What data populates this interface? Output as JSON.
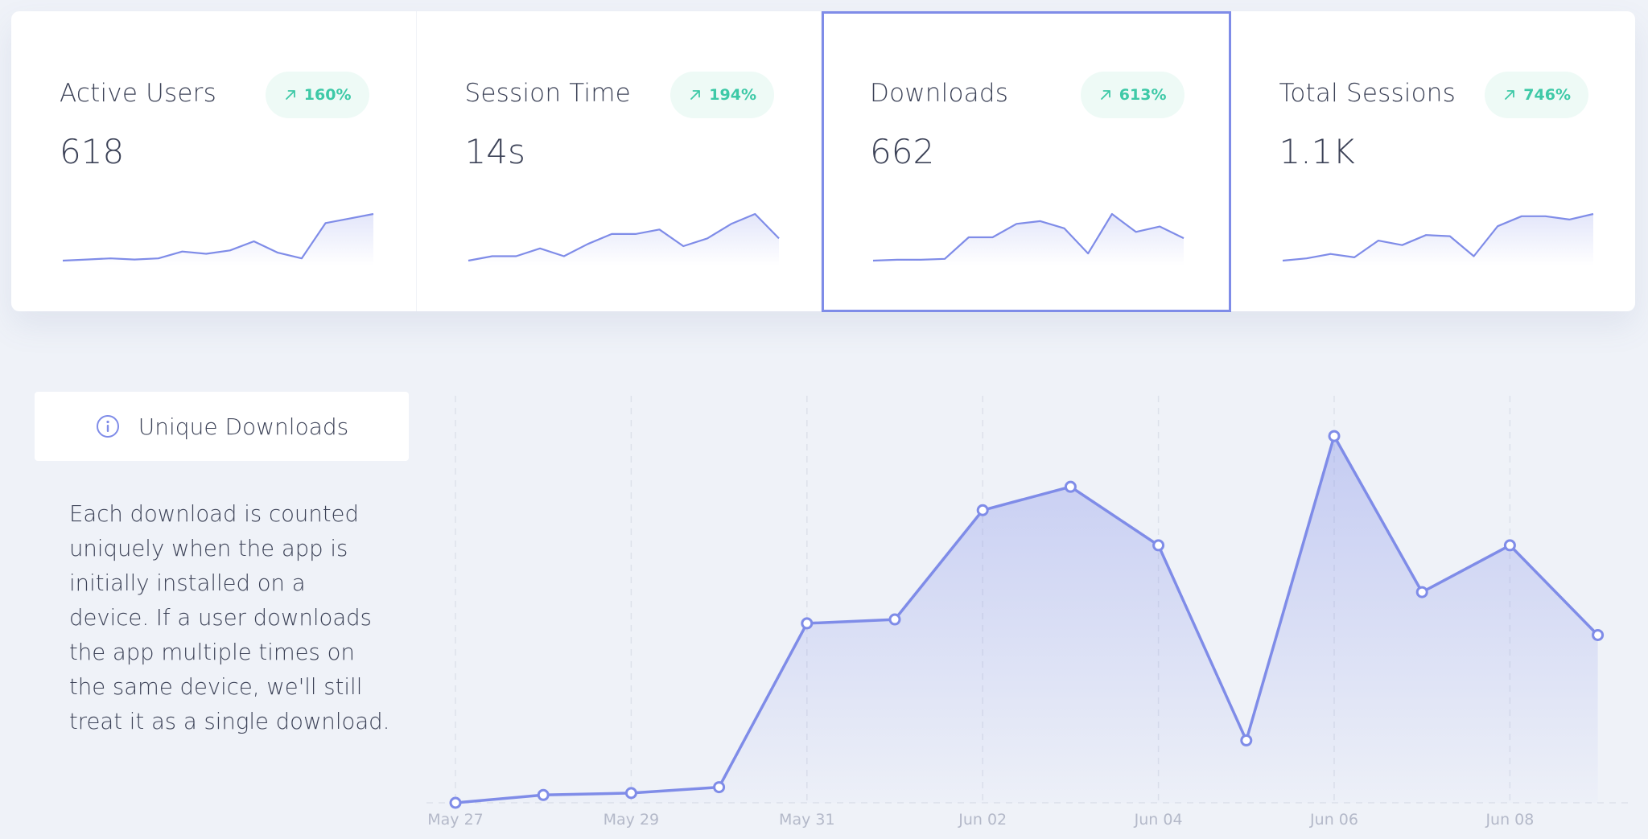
{
  "stat_cards": [
    {
      "title": "Active Users",
      "value": "618",
      "change": "160%",
      "trend": [
        1,
        2,
        3,
        2,
        3,
        9,
        7,
        10,
        18,
        8,
        3,
        34,
        38,
        42
      ]
    },
    {
      "title": "Session Time",
      "value": "14s",
      "change": "194%",
      "trend": [
        0,
        4,
        4,
        11,
        4,
        15,
        24,
        24,
        28,
        13,
        20,
        33,
        42,
        20
      ]
    },
    {
      "title": "Downloads",
      "value": "662",
      "change": "613%",
      "trend": [
        0,
        1,
        1,
        2,
        26,
        26,
        41,
        44,
        36,
        8,
        52,
        32,
        38,
        25
      ]
    },
    {
      "title": "Total Sessions",
      "value": "1.1K",
      "change": "746%",
      "trend": [
        1,
        3,
        7,
        4,
        19,
        15,
        24,
        23,
        5,
        32,
        41,
        41,
        38,
        43
      ]
    }
  ],
  "selected_card": 2,
  "info": {
    "title": "Unique Downloads",
    "description": "Each download is counted uniquely when the app is initially installed on a device. If a user downloads the app multiple times on the same device, we'll still treat it as a single download."
  },
  "colors": {
    "accent": "#7f8ce8",
    "badge_text": "#3ec9a7",
    "badge_bg": "#eefaf6",
    "text": "#3c4257",
    "axis_text": "#b4b9c9",
    "grid": "#dde1ea"
  },
  "icons": {
    "badge": "arrow-up-right-icon",
    "info": "info-circle-icon"
  },
  "chart_data": {
    "type": "area",
    "x": [
      "May 27",
      "May 28",
      "May 29",
      "May 30",
      "May 31",
      "Jun 01",
      "Jun 02",
      "Jun 03",
      "Jun 04",
      "Jun 05",
      "Jun 06",
      "Jun 07",
      "Jun 08",
      "Jun 09"
    ],
    "tick_labels": [
      "May 27",
      "May 29",
      "May 31",
      "Jun 02",
      "Jun 04",
      "Jun 06",
      "Jun 08"
    ],
    "series": [
      {
        "values": [
          0,
          2,
          2.5,
          4,
          46,
          47,
          75,
          81,
          66,
          16,
          94,
          54,
          66,
          43
        ]
      }
    ],
    "title": "",
    "xlabel": "",
    "ylabel": "",
    "ylim": [
      0,
      100
    ],
    "grid": true
  }
}
